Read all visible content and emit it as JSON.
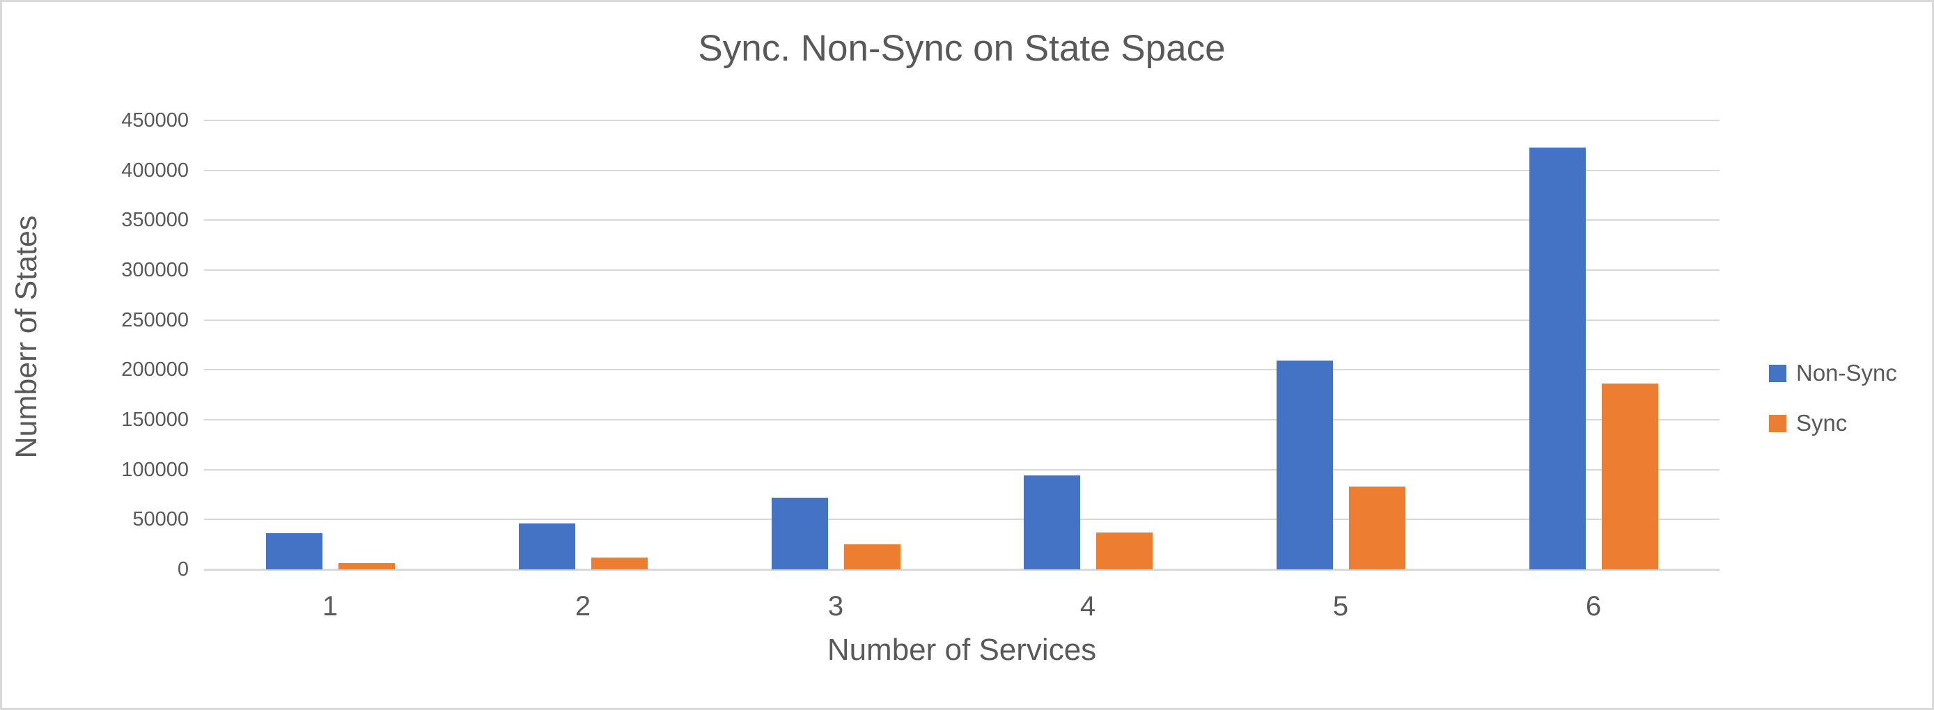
{
  "chart_data": {
    "type": "bar",
    "title": "Sync. Non-Sync on State Space",
    "categories": [
      "1",
      "2",
      "3",
      "4",
      "5",
      "6"
    ],
    "series": [
      {
        "name": "Non-Sync",
        "color": "#4472C4",
        "values": [
          36000,
          46000,
          72000,
          94000,
          209000,
          423000
        ]
      },
      {
        "name": "Sync",
        "color": "#ED7D31",
        "values": [
          6000,
          12000,
          25000,
          37000,
          83000,
          186000
        ]
      }
    ],
    "xlabel": "Number of Services",
    "ylabel": "Numberr of States",
    "ylim": [
      0,
      450000
    ],
    "ytick_step": 50000,
    "ytick_labels": [
      "0",
      "50000",
      "100000",
      "150000",
      "200000",
      "250000",
      "300000",
      "350000",
      "400000",
      "450000"
    ],
    "grid": true,
    "legend_position": "right",
    "legend": [
      "Non-Sync",
      "Sync"
    ]
  },
  "colors": {
    "non_sync": "#4472C4",
    "sync": "#ED7D31",
    "grid_line": "#D9D9D9",
    "axis_line": "#D9D9D9",
    "text": "#595959",
    "background": "#FFFFFF",
    "border": "#D9D9D9"
  }
}
